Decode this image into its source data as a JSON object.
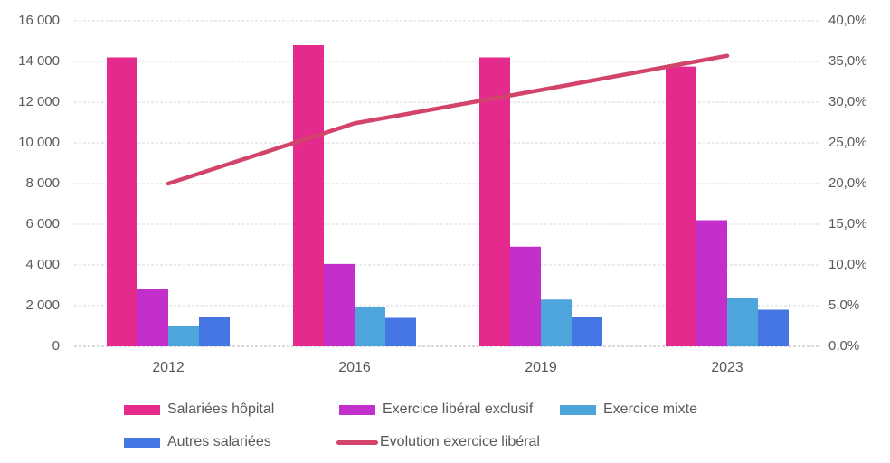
{
  "chart_data": {
    "type": "bar",
    "subtype": "grouped-bars-with-line",
    "title": "",
    "categories": [
      "2012",
      "2016",
      "2019",
      "2023"
    ],
    "bar_series": [
      {
        "name": "Salariées hôpital",
        "color": "#E42B8D",
        "axis": "left",
        "values": [
          14200,
          14800,
          14200,
          13750
        ]
      },
      {
        "name": "Exercice libéral exclusif",
        "color": "#C32FCB",
        "axis": "left",
        "values": [
          2800,
          4050,
          4900,
          6200
        ]
      },
      {
        "name": "Exercice mixte",
        "color": "#4EA5DC",
        "axis": "left",
        "values": [
          1000,
          1950,
          2300,
          2400
        ]
      },
      {
        "name": "Autres salariées",
        "color": "#4675E4",
        "axis": "left",
        "values": [
          1450,
          1400,
          1450,
          1800
        ]
      }
    ],
    "line_series": [
      {
        "name": "Evolution exercice libéral",
        "color": "#D3446B",
        "axis": "right",
        "values": [
          20.0,
          27.4,
          31.5,
          35.7
        ]
      }
    ],
    "left_axis": {
      "min": 0,
      "max": 16000,
      "step": 2000,
      "tick_labels_top_to_bottom": [
        "16 000",
        "14 000",
        "12 000",
        "10 000",
        "8 000",
        "6 000",
        "4 000",
        "2 000",
        "0"
      ]
    },
    "right_axis": {
      "min": 0,
      "max": 40,
      "step": 5,
      "tick_labels_top_to_bottom": [
        "40,0%",
        "35,0%",
        "30,0%",
        "25,0%",
        "20,0%",
        "15,0%",
        "10,0%",
        "5,0%",
        "0,0%"
      ]
    },
    "grid": {
      "horizontal": true,
      "style": "dashed",
      "color": "#D9D9D9"
    },
    "axis_text_color": "#595959",
    "legend_position": "bottom",
    "background_color": "#FFFFFF"
  }
}
